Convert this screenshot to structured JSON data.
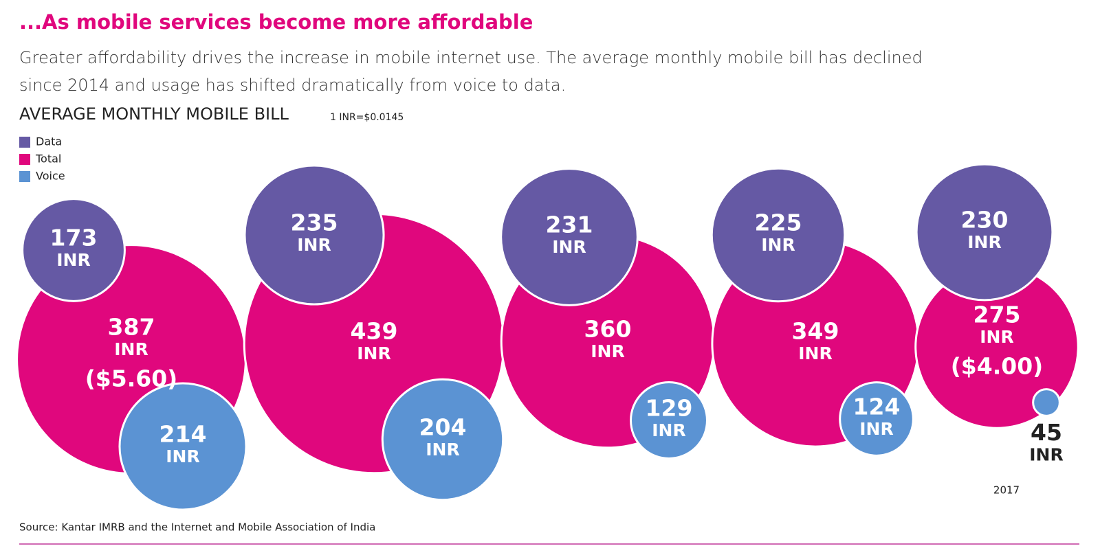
{
  "chart_data": {
    "type": "bubble",
    "title": "...As mobile services become more affordable",
    "subtitle": "Greater affordability drives the increase in mobile internet use. The average monthly mobile bill has declined since 2014 and usage has shifted dramatically from voice to data.",
    "chart_title": "AVERAGE MONTHLY MOBILE BILL",
    "note": "1 INR=$0.0145",
    "unit": "INR",
    "categories": [
      null,
      null,
      null,
      null,
      "2017"
    ],
    "series": [
      {
        "name": "Data",
        "color": "#6559a4",
        "values": [
          173,
          235,
          231,
          225,
          230
        ]
      },
      {
        "name": "Total",
        "color": "#e0077d",
        "values": [
          387,
          439,
          360,
          349,
          275
        ],
        "usd_labels": [
          "($5.60)",
          null,
          null,
          null,
          "($4.00)"
        ]
      },
      {
        "name": "Voice",
        "color": "#5b93d3",
        "values": [
          214,
          204,
          129,
          124,
          45
        ]
      }
    ],
    "source": "Source: Kantar IMRB and the Internet and Mobile Association of India"
  }
}
